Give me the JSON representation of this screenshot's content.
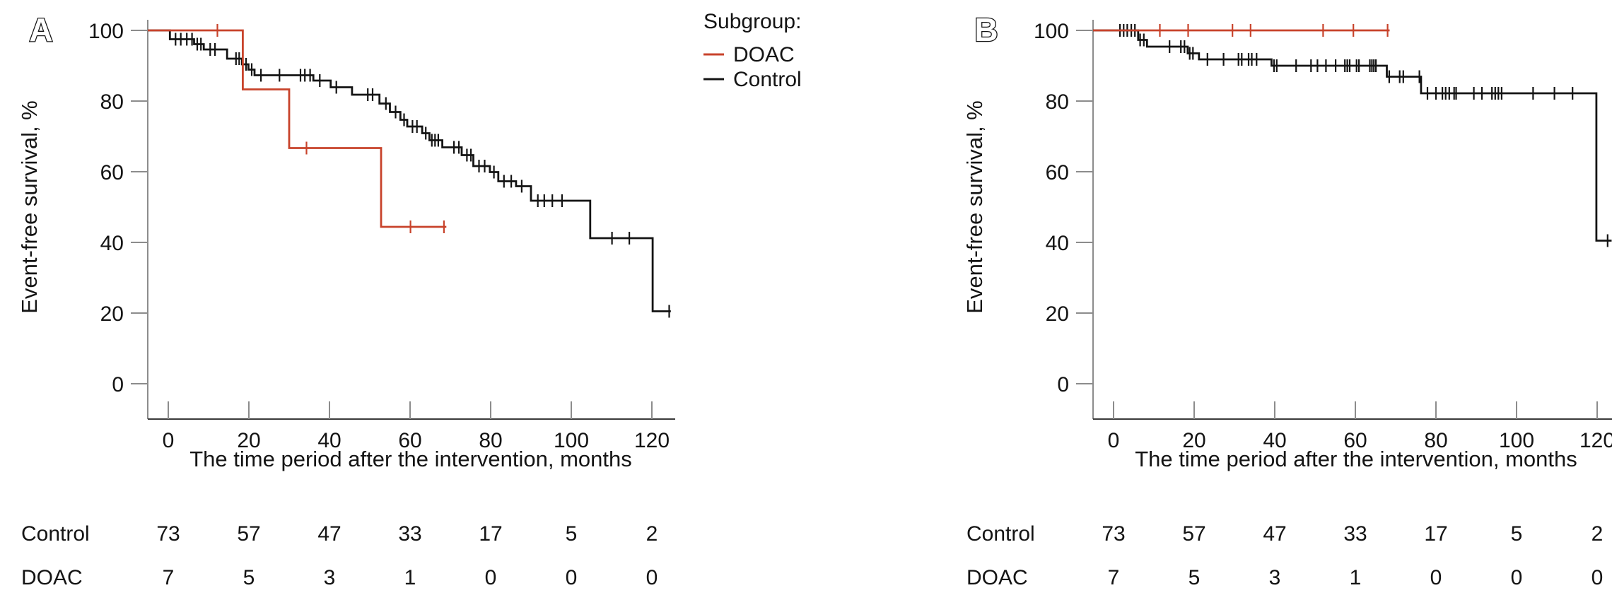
{
  "palette": {
    "doac": "#c8432b",
    "control": "#141414",
    "axis": "#8c8c8c",
    "text": "#141414"
  },
  "panels": [
    {
      "letter": "A",
      "ylabel": "Event-free survival, %",
      "xlabel": "The time period after the intervention, months"
    },
    {
      "letter": "B",
      "ylabel": "Event-free survival, %",
      "xlabel": "The time period after the intervention, months"
    }
  ],
  "legend": {
    "title": "Subgroup:",
    "items": [
      {
        "label": "DOAC",
        "color_key": "doac"
      },
      {
        "label": "Control",
        "color_key": "control"
      }
    ]
  },
  "axes": {
    "yticks": [
      100,
      80,
      60,
      40,
      20,
      0
    ],
    "xticks": [
      0,
      20,
      40,
      60,
      80,
      100,
      120
    ],
    "ylim": [
      0,
      100
    ],
    "xlim": [
      0,
      125
    ]
  },
  "risk_table": {
    "rows": [
      {
        "label": "Control",
        "color_key": "control",
        "counts": [
          73,
          57,
          47,
          33,
          17,
          5,
          2
        ]
      },
      {
        "label": "DOAC",
        "color_key": "doac",
        "counts": [
          7,
          5,
          3,
          1,
          0,
          0,
          0
        ]
      }
    ]
  },
  "chart_data": [
    {
      "type": "line",
      "panel": "A",
      "title": "",
      "xlabel": "The time period after the intervention, months",
      "ylabel": "Event-free survival, %",
      "xlim": [
        0,
        125
      ],
      "ylim": [
        0,
        100
      ],
      "grid": false,
      "legend_position": "right-of-panel-A",
      "series": [
        {
          "name": "Control",
          "color_key": "control",
          "km_start_level": 100,
          "drops": [
            [
              0.4,
              97.5
            ],
            [
              6.4,
              96.1
            ],
            [
              8.8,
              94.6
            ],
            [
              14.6,
              92.0
            ],
            [
              18.3,
              90.4
            ],
            [
              19.9,
              88.9
            ],
            [
              21.4,
              87.3
            ],
            [
              36,
              85.8
            ],
            [
              40.3,
              83.9
            ],
            [
              45.6,
              81.8
            ],
            [
              52.4,
              79.3
            ],
            [
              55,
              76.9
            ],
            [
              57.6,
              74.7
            ],
            [
              59.3,
              72.8
            ],
            [
              63,
              70.9
            ],
            [
              64.8,
              68.9
            ],
            [
              68,
              66.9
            ],
            [
              72.8,
              64.7
            ],
            [
              75.7,
              61.6
            ],
            [
              79.8,
              59.9
            ],
            [
              81.9,
              57.3
            ],
            [
              86.3,
              55.9
            ],
            [
              90,
              51.8
            ],
            [
              104.7,
              41.2
            ],
            [
              120.2,
              20.5
            ]
          ],
          "end_time": 124.7,
          "censors": [
            [
              1.8,
              97.5
            ],
            [
              3.1,
              97.5
            ],
            [
              4.6,
              97.5
            ],
            [
              5.9,
              97.5
            ],
            [
              7.2,
              96.1
            ],
            [
              8.1,
              96.1
            ],
            [
              10.4,
              94.6
            ],
            [
              11.6,
              94.6
            ],
            [
              16.8,
              92
            ],
            [
              17.6,
              92
            ],
            [
              19.3,
              90.4
            ],
            [
              20.7,
              88.9
            ],
            [
              23,
              87.3
            ],
            [
              27.6,
              87.3
            ],
            [
              32.8,
              87.3
            ],
            [
              33.9,
              87.3
            ],
            [
              35.2,
              87.3
            ],
            [
              37.6,
              85.8
            ],
            [
              41.7,
              83.9
            ],
            [
              49.5,
              81.8
            ],
            [
              50.7,
              81.8
            ],
            [
              54,
              79.3
            ],
            [
              56.4,
              76.9
            ],
            [
              58.5,
              74.7
            ],
            [
              60.6,
              72.8
            ],
            [
              61.7,
              72.8
            ],
            [
              63.9,
              70.9
            ],
            [
              65.4,
              68.9
            ],
            [
              66.2,
              68.9
            ],
            [
              67,
              68.9
            ],
            [
              70.9,
              66.9
            ],
            [
              72.1,
              66.9
            ],
            [
              74.1,
              64.7
            ],
            [
              75.1,
              64.7
            ],
            [
              77.1,
              61.6
            ],
            [
              78.5,
              61.6
            ],
            [
              80.8,
              59.9
            ],
            [
              83.3,
              57.3
            ],
            [
              85.1,
              57.3
            ],
            [
              87.7,
              55.9
            ],
            [
              91.7,
              51.8
            ],
            [
              93.3,
              51.8
            ],
            [
              95.3,
              51.8
            ],
            [
              97.7,
              51.8
            ],
            [
              110.1,
              41.2
            ],
            [
              114.4,
              41.2
            ],
            [
              124.3,
              20.5
            ]
          ]
        },
        {
          "name": "DOAC",
          "color_key": "doac",
          "km_start_level": 100,
          "drops": [
            [
              18.5,
              83.3
            ],
            [
              30,
              66.7
            ],
            [
              52.8,
              44.4
            ]
          ],
          "end_time": 69,
          "censors": [
            [
              12.2,
              100
            ],
            [
              34.3,
              66.7
            ],
            [
              60.1,
              44.4
            ],
            [
              68.4,
              44.4
            ]
          ]
        }
      ]
    },
    {
      "type": "line",
      "panel": "B",
      "title": "",
      "xlabel": "The time period after the intervention, months",
      "ylabel": "Event-free survival, %",
      "xlim": [
        0,
        125
      ],
      "ylim": [
        0,
        100
      ],
      "grid": false,
      "series": [
        {
          "name": "Control",
          "color_key": "control",
          "km_start_level": 100,
          "drops": [
            [
              6.1,
              97.3
            ],
            [
              8.3,
              95.4
            ],
            [
              18.4,
              93.5
            ],
            [
              21.2,
              91.8
            ],
            [
              39.2,
              90.0
            ],
            [
              67.8,
              86.9
            ],
            [
              76.3,
              82.2
            ],
            [
              119.8,
              40.5
            ]
          ],
          "end_time": 123.6,
          "censors": [
            [
              1.6,
              100
            ],
            [
              2.5,
              100
            ],
            [
              3.4,
              100
            ],
            [
              4.4,
              100
            ],
            [
              5.3,
              100
            ],
            [
              6.6,
              97.3
            ],
            [
              7.5,
              97.3
            ],
            [
              13.9,
              95.4
            ],
            [
              16.7,
              95.4
            ],
            [
              17.6,
              95.4
            ],
            [
              18.9,
              93.5
            ],
            [
              19.7,
              93.5
            ],
            [
              23.3,
              91.8
            ],
            [
              27.3,
              91.8
            ],
            [
              31,
              91.8
            ],
            [
              31.8,
              91.8
            ],
            [
              33.5,
              91.8
            ],
            [
              34.3,
              91.8
            ],
            [
              35.5,
              91.8
            ],
            [
              39.8,
              90
            ],
            [
              40.5,
              90
            ],
            [
              45.3,
              90
            ],
            [
              49,
              90
            ],
            [
              50.6,
              90
            ],
            [
              52.7,
              90
            ],
            [
              55.1,
              90
            ],
            [
              57.4,
              90
            ],
            [
              58,
              90
            ],
            [
              58.6,
              90
            ],
            [
              60.3,
              90
            ],
            [
              60.9,
              90
            ],
            [
              63.6,
              90
            ],
            [
              64.1,
              90
            ],
            [
              64.6,
              90
            ],
            [
              65.1,
              90
            ],
            [
              68.4,
              86.9
            ],
            [
              71,
              86.9
            ],
            [
              71.9,
              86.9
            ],
            [
              75.9,
              86.9
            ],
            [
              77.9,
              82.2
            ],
            [
              80,
              82.2
            ],
            [
              81.6,
              82.2
            ],
            [
              82.4,
              82.2
            ],
            [
              83.3,
              82.2
            ],
            [
              84.5,
              82.2
            ],
            [
              85,
              82.2
            ],
            [
              89.4,
              82.2
            ],
            [
              91.4,
              82.2
            ],
            [
              93.9,
              82.2
            ],
            [
              94.7,
              82.2
            ],
            [
              95.5,
              82.2
            ],
            [
              96.3,
              82.2
            ],
            [
              104.1,
              82.2
            ],
            [
              109.4,
              82.2
            ],
            [
              113.9,
              82.2
            ],
            [
              122.6,
              40.5
            ]
          ]
        },
        {
          "name": "DOAC",
          "color_key": "doac",
          "km_start_level": 100,
          "drops": [],
          "end_time": 68.5,
          "censors": [
            [
              11.5,
              100
            ],
            [
              18.5,
              100
            ],
            [
              29.5,
              100
            ],
            [
              34,
              100
            ],
            [
              52,
              100
            ],
            [
              59.5,
              100
            ],
            [
              68,
              100
            ]
          ]
        }
      ]
    }
  ]
}
